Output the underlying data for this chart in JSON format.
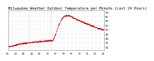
{
  "title": "Milwaukee Weather Outdoor Temperature per Minute (Last 24 Hours)",
  "title_fontsize": 3.8,
  "line_color": "#cc0000",
  "background_color": "#ffffff",
  "grid_color": "#cccccc",
  "vline_color": "#aaaaaa",
  "ylim": [
    27,
    72
  ],
  "ytick_values": [
    30,
    35,
    40,
    45,
    50,
    55,
    60,
    65,
    70
  ],
  "num_points": 1440,
  "vline_positions": [
    0.215,
    0.44
  ],
  "curve": [
    [
      0.0,
      31.0
    ],
    [
      0.05,
      31.5
    ],
    [
      0.1,
      33.0
    ],
    [
      0.15,
      34.0
    ],
    [
      0.18,
      34.5
    ],
    [
      0.21,
      34.8
    ],
    [
      0.22,
      35.0
    ],
    [
      0.25,
      35.5
    ],
    [
      0.3,
      36.0
    ],
    [
      0.35,
      36.5
    ],
    [
      0.4,
      37.0
    ],
    [
      0.44,
      37.5
    ],
    [
      0.46,
      37.2
    ],
    [
      0.48,
      40.0
    ],
    [
      0.5,
      46.0
    ],
    [
      0.52,
      52.0
    ],
    [
      0.54,
      58.0
    ],
    [
      0.56,
      62.0
    ],
    [
      0.58,
      64.5
    ],
    [
      0.6,
      65.5
    ],
    [
      0.62,
      65.8
    ],
    [
      0.63,
      66.0
    ],
    [
      0.65,
      65.5
    ],
    [
      0.67,
      64.0
    ],
    [
      0.7,
      62.5
    ],
    [
      0.73,
      61.0
    ],
    [
      0.76,
      59.5
    ],
    [
      0.8,
      57.5
    ],
    [
      0.84,
      56.0
    ],
    [
      0.88,
      54.0
    ],
    [
      0.92,
      52.5
    ],
    [
      0.96,
      51.0
    ],
    [
      1.0,
      49.5
    ]
  ]
}
